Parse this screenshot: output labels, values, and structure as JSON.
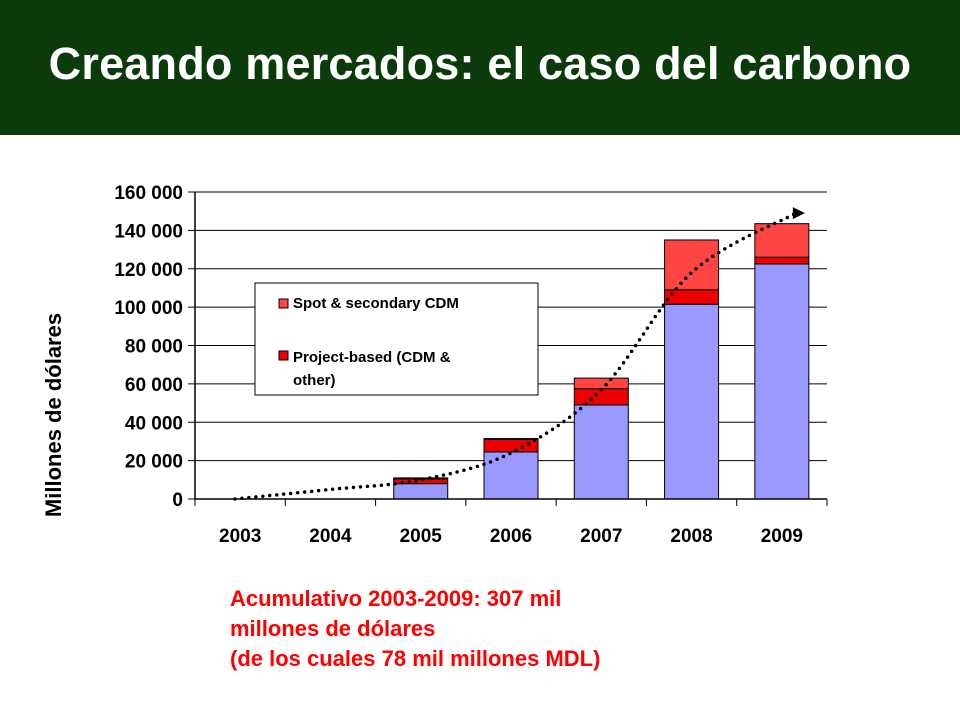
{
  "slide": {
    "title": "Creando mercados: el caso del carbono",
    "footnote": [
      "Acumulativo 2003-2009: 307 mil",
      "millones de dólares",
      "(de los cuales 78 mil millones MDL)"
    ]
  },
  "colors": {
    "title_bg": "#0b3a0b",
    "title_text": "#ffffff",
    "spot_secondary": "#ff4444",
    "project_based": "#ee0000",
    "base_series": "#9999ff",
    "footnote": "#ff0000",
    "trend": "#000000"
  },
  "chart_data": {
    "type": "bar",
    "stacked": true,
    "title": "",
    "xlabel": "",
    "ylabel": "Millones de dólares",
    "categories": [
      "2003",
      "2004",
      "2005",
      "2006",
      "2007",
      "2008",
      "2009"
    ],
    "ylim": [
      0,
      160000
    ],
    "yticks": [
      0,
      20000,
      40000,
      60000,
      80000,
      100000,
      120000,
      140000,
      160000
    ],
    "ytick_labels": [
      "0",
      "20 000",
      "40 000",
      "60 000",
      "80 000",
      "100 000",
      "120 000",
      "140 000",
      "160 000"
    ],
    "grid": "horizontal",
    "legend_position": "upper-left inside plot",
    "series": [
      {
        "values": [
          0,
          0,
          8000,
          24500,
          49000,
          101500,
          122500
        ],
        "color": "#9999ff"
      },
      {
        "name": "Project-based (CDM & other)",
        "values": [
          0,
          0,
          2500,
          6500,
          8500,
          7500,
          3500
        ],
        "color": "#ee0000"
      },
      {
        "name": "Spot & secondary CDM",
        "values": [
          0,
          0,
          500,
          500,
          5500,
          26000,
          17500
        ],
        "color": "#ff4444"
      }
    ],
    "legend": [
      {
        "label": "Spot & secondary CDM",
        "color": "#ff4444"
      },
      {
        "label": "Project-based (CDM & other)",
        "label_lines": [
          "Project-based (CDM &",
          "other)"
        ],
        "color": "#ee0000"
      }
    ],
    "trend_line": {
      "style": "dotted",
      "arrow": "end",
      "x": [
        "2003",
        "2004",
        "2005",
        "2006",
        "2007",
        "2008",
        "2009"
      ],
      "y": [
        0,
        5000,
        10000,
        24000,
        57000,
        118000,
        149000
      ]
    }
  }
}
